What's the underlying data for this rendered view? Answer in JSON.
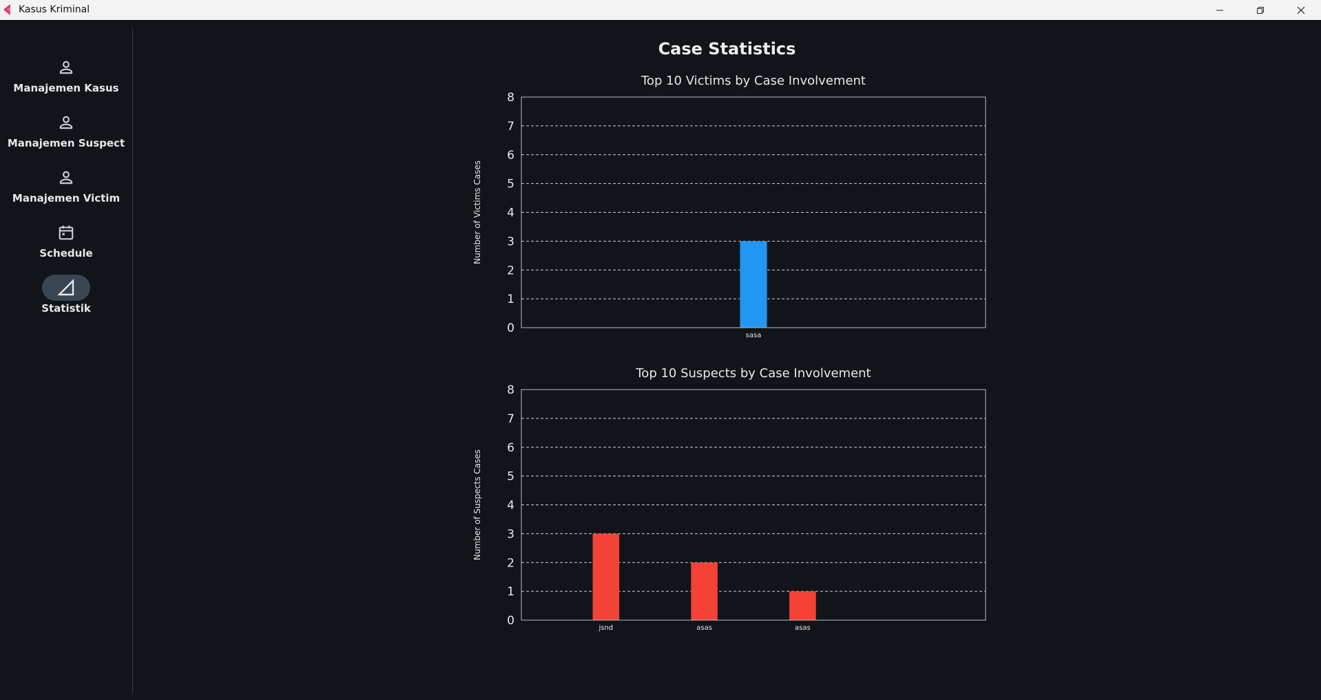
{
  "window": {
    "title": "Kasus Kriminal",
    "minimize_icon": "minimize-icon",
    "maximize_icon": "restore-icon",
    "close_icon": "close-icon"
  },
  "sidebar": {
    "items": [
      {
        "label": "Manajemen Kasus",
        "icon": "person-icon",
        "active": false
      },
      {
        "label": "Manajemen Suspect",
        "icon": "person-icon",
        "active": false
      },
      {
        "label": "Manajemen Victim",
        "icon": "person-icon",
        "active": false
      },
      {
        "label": "Schedule",
        "icon": "calendar-icon",
        "active": false
      },
      {
        "label": "Statistik",
        "icon": "chart-triangle-icon",
        "active": true
      }
    ]
  },
  "page": {
    "title": "Case Statistics"
  },
  "colors": {
    "victim_bar": "#2196f3",
    "suspect_bar": "#f44336",
    "background": "#111418",
    "active_pill": "#3a4554"
  },
  "chart_data": [
    {
      "type": "bar",
      "title": "Top 10 Victims by Case Involvement",
      "xlabel": "",
      "ylabel": "Number of Victims Cases",
      "categories": [
        "sasa"
      ],
      "values": [
        3
      ],
      "ylim": [
        0,
        8
      ],
      "yticks": [
        0,
        1,
        2,
        3,
        4,
        5,
        6,
        7,
        8
      ],
      "grid": true,
      "color": "#2196f3"
    },
    {
      "type": "bar",
      "title": "Top 10 Suspects by Case Involvement",
      "xlabel": "",
      "ylabel": "Number of Suspects Cases",
      "categories": [
        "jsnd",
        "asas",
        "asas"
      ],
      "values": [
        3,
        2,
        1
      ],
      "ylim": [
        0,
        8
      ],
      "yticks": [
        0,
        1,
        2,
        3,
        4,
        5,
        6,
        7,
        8
      ],
      "grid": true,
      "color": "#f44336"
    }
  ]
}
